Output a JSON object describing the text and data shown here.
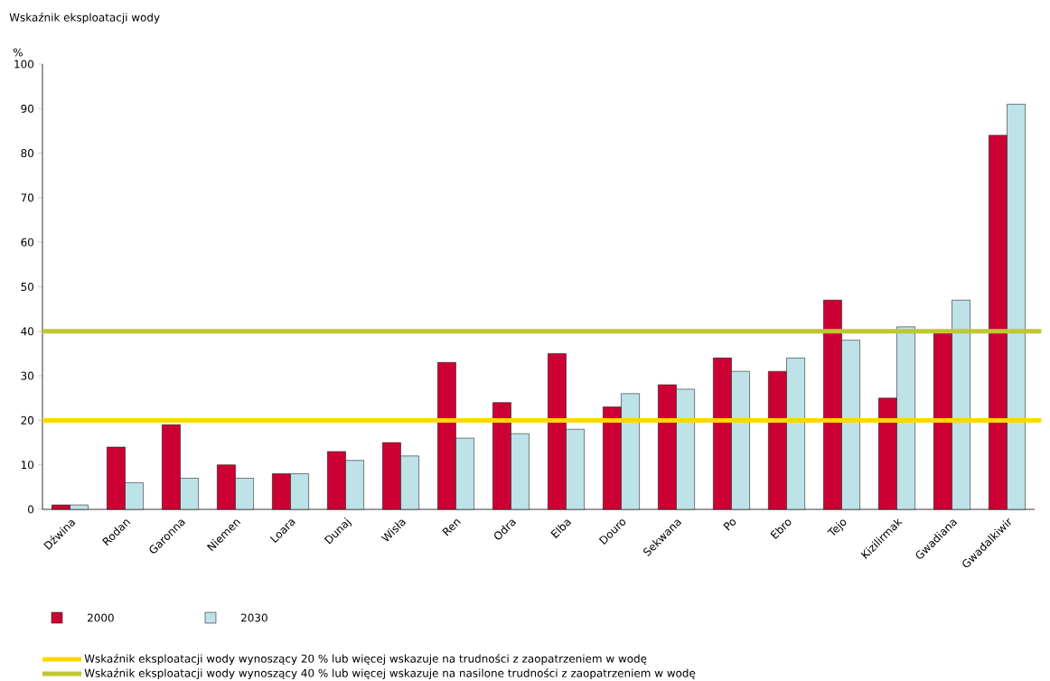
{
  "chart_data": {
    "type": "bar",
    "title": "Wskaźnik eksploatacji wody",
    "ylabel": "%",
    "categories": [
      "Dźwina",
      "Rodan",
      "Garonna",
      "Niemen",
      "Loara",
      "Dunaj",
      "Wisła",
      "Ren",
      "Odra",
      "Elba",
      "Douro",
      "Sekwana",
      "Po",
      "Ebro",
      "Tejo",
      "Kizilirmak",
      "Gwadiana",
      "Gwadalkiwir"
    ],
    "series": [
      {
        "name": "2000",
        "color": "#cc0033",
        "values": [
          1,
          14,
          19,
          10,
          8,
          13,
          15,
          33,
          24,
          35,
          23,
          28,
          34,
          31,
          47,
          25,
          40,
          84
        ]
      },
      {
        "name": "2030",
        "color": "#bde2e8",
        "values": [
          1,
          6,
          7,
          7,
          8,
          11,
          12,
          16,
          17,
          18,
          26,
          27,
          31,
          34,
          38,
          41,
          47,
          91
        ]
      }
    ],
    "ylim": [
      0,
      100
    ],
    "yticks": [
      0,
      10,
      20,
      30,
      40,
      50,
      60,
      70,
      80,
      90,
      100
    ],
    "ref_lines": [
      {
        "axis": "y",
        "value": 20,
        "color": "#ffd700",
        "label": "Wskaźnik eksploatacji wody wynoszący 20 % lub więcej wskazuje na trudności z zaopatrzeniem w wodę"
      },
      {
        "axis": "y",
        "value": 40,
        "color": "#bdc833",
        "label": "Wskaźnik eksploatacji wody wynoszący 40 % lub więcej wskazuje na nasilone trudności z zaopatrzeniem w wodę"
      }
    ],
    "legend": "bottom left",
    "grid": false
  }
}
